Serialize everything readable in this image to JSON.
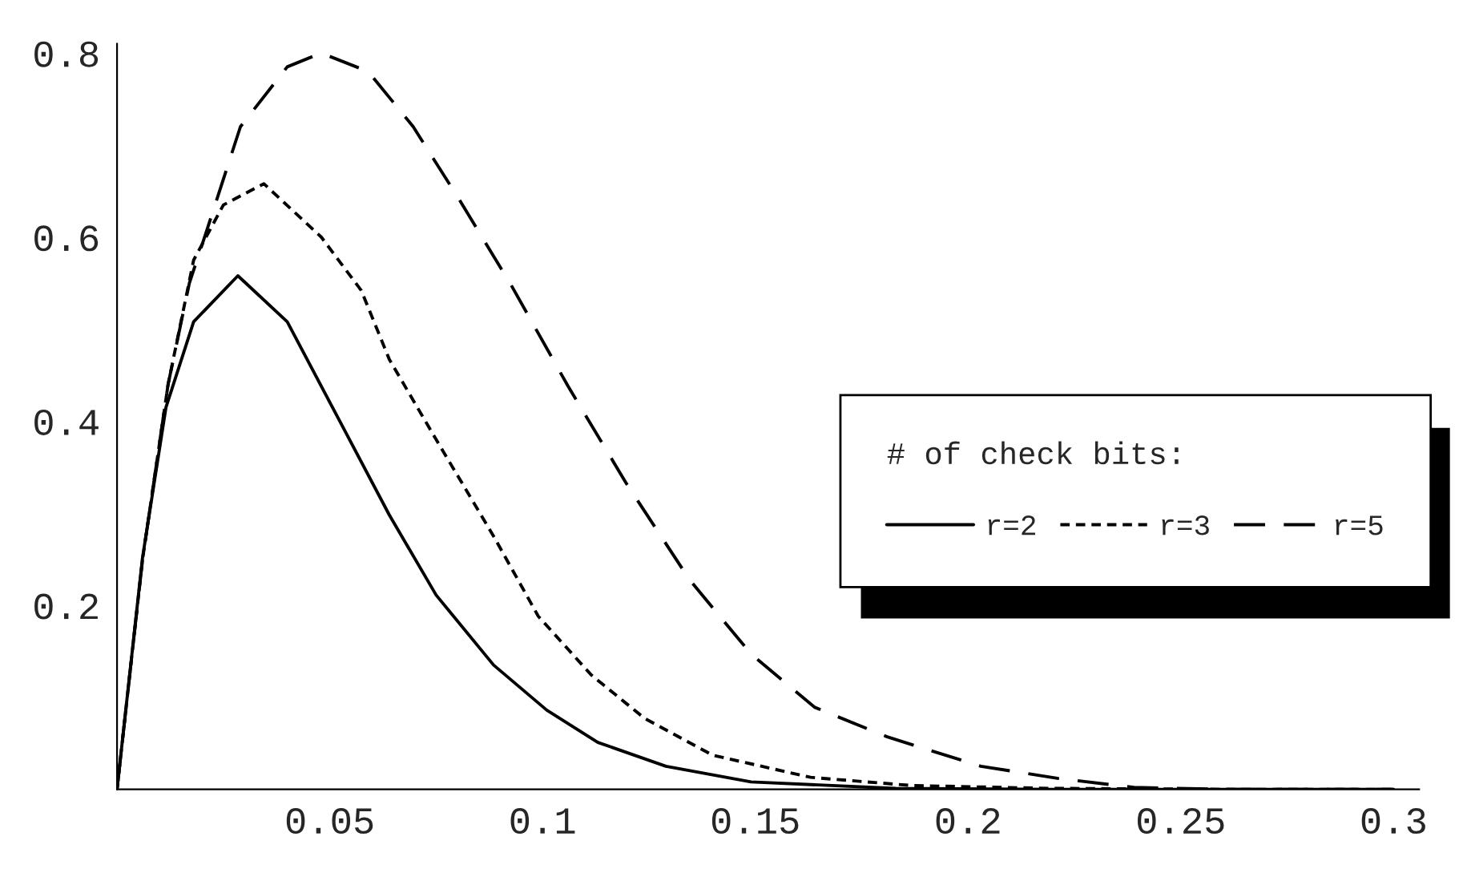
{
  "chart_data": {
    "type": "line",
    "legend_title": "# of check bits:",
    "legend": "right",
    "xlim": [
      0,
      0.306
    ],
    "ylim": [
      0,
      0.81
    ],
    "xticks": [
      0.05,
      0.1,
      0.15,
      0.2,
      0.25,
      0.3
    ],
    "yticks": [
      0.2,
      0.4,
      0.6,
      0.8
    ],
    "grid": false,
    "series": [
      {
        "name": "r=2",
        "color": "#000000",
        "line_style": "solid",
        "x": [
          0,
          0.006,
          0.0115,
          0.018,
          0.0284,
          0.04,
          0.052,
          0.064,
          0.075,
          0.0885,
          0.101,
          0.113,
          0.129,
          0.149,
          0.183,
          0.22,
          0.26,
          0.3
        ],
        "values": [
          0,
          0.252,
          0.415,
          0.508,
          0.558,
          0.508,
          0.403,
          0.298,
          0.211,
          0.135,
          0.086,
          0.051,
          0.025,
          0.008,
          0.001,
          0,
          0,
          0
        ]
      },
      {
        "name": "r=3",
        "color": "#000000",
        "line_style": "dotted",
        "x": [
          0,
          0.006,
          0.012,
          0.018,
          0.025,
          0.0345,
          0.048,
          0.0574,
          0.064,
          0.075,
          0.0885,
          0.099,
          0.1115,
          0.124,
          0.14,
          0.163,
          0.187,
          0.22,
          0.26,
          0.3
        ],
        "values": [
          0,
          0.25,
          0.44,
          0.575,
          0.635,
          0.658,
          0.6,
          0.542,
          0.467,
          0.38,
          0.275,
          0.188,
          0.124,
          0.077,
          0.037,
          0.013,
          0.004,
          0.001,
          0,
          0
        ]
      },
      {
        "name": "r=5",
        "color": "#000000",
        "line_style": "dashed",
        "x": [
          0,
          0.006,
          0.012,
          0.017,
          0.021,
          0.029,
          0.04,
          0.048,
          0.059,
          0.0696,
          0.0804,
          0.0926,
          0.106,
          0.1196,
          0.1345,
          0.149,
          0.164,
          0.181,
          0.203,
          0.221,
          0.239,
          0.26,
          0.3
        ],
        "values": [
          0,
          0.25,
          0.44,
          0.55,
          0.606,
          0.72,
          0.785,
          0.8,
          0.78,
          0.72,
          0.641,
          0.548,
          0.438,
          0.333,
          0.228,
          0.147,
          0.089,
          0.057,
          0.025,
          0.012,
          0.002,
          0,
          0
        ]
      }
    ]
  }
}
